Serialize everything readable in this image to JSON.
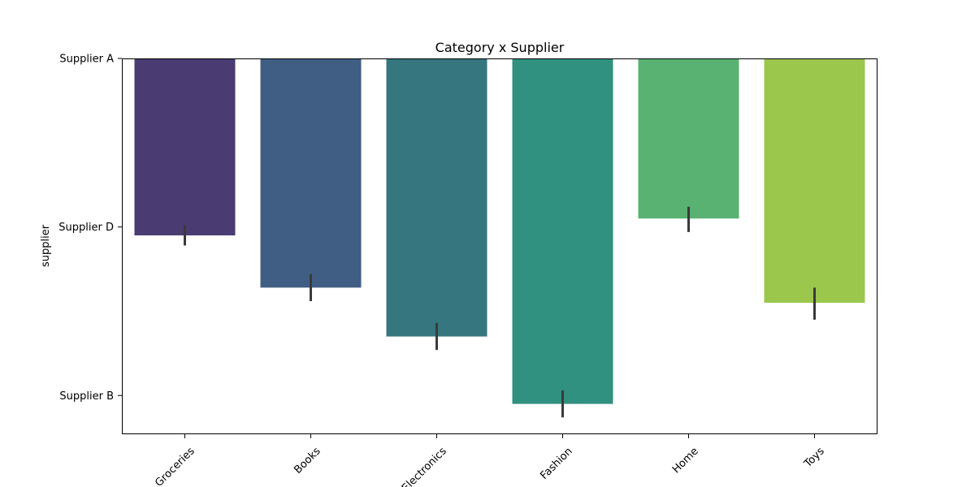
{
  "chart_data": {
    "type": "bar",
    "title": "Category x Supplier",
    "xlabel": "",
    "ylabel": "supplier",
    "categories": [
      "Groceries",
      "Books",
      "Electronics",
      "Fashion",
      "Home",
      "Toys"
    ],
    "y_ticks": [
      {
        "label": "Supplier A",
        "value": 0
      },
      {
        "label": "Supplier D",
        "value": 1
      },
      {
        "label": "Supplier B",
        "value": 2
      }
    ],
    "values": [
      1.05,
      1.36,
      1.65,
      2.05,
      0.95,
      1.45
    ],
    "error_low": [
      0.99,
      1.28,
      1.57,
      1.97,
      0.88,
      1.36
    ],
    "error_high": [
      1.11,
      1.44,
      1.73,
      2.13,
      1.03,
      1.55
    ],
    "ylim": [
      2.23,
      0
    ],
    "colors": [
      "#4a3c72",
      "#405e84",
      "#35767f",
      "#319180",
      "#59b272",
      "#9bc74d"
    ],
    "error_color": "#3a3a3a",
    "grid": false,
    "legend": "none"
  }
}
